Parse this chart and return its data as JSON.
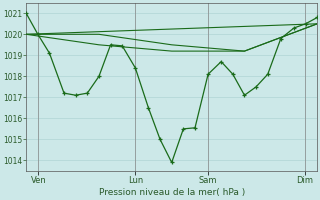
{
  "background_color": "#cce8e8",
  "grid_color": "#b0d4d4",
  "line_color": "#1a6b1a",
  "xlabel_text": "Pression niveau de la mer( hPa )",
  "xlabels": [
    "Ven",
    "Lun",
    "Sam",
    "Dim"
  ],
  "ylim": [
    1013.5,
    1021.5
  ],
  "yticks": [
    1014,
    1015,
    1016,
    1017,
    1018,
    1019,
    1020,
    1021
  ],
  "xtick_positions": [
    0.0,
    0.333,
    0.667,
    1.0
  ],
  "xtick_labels_positions": [
    0.042,
    0.375,
    0.625,
    0.958
  ],
  "main_x": [
    0.0,
    0.04,
    0.08,
    0.13,
    0.17,
    0.21,
    0.25,
    0.29,
    0.33,
    0.375,
    0.42,
    0.46,
    0.5,
    0.54,
    0.58,
    0.625,
    0.67,
    0.71,
    0.75,
    0.79,
    0.83,
    0.875,
    0.92,
    0.96,
    1.0
  ],
  "main_y": [
    1021.0,
    1020.0,
    1019.1,
    1017.2,
    1017.1,
    1017.2,
    1018.0,
    1019.5,
    1019.45,
    1018.4,
    1016.5,
    1015.0,
    1013.9,
    1015.5,
    1015.55,
    1018.1,
    1018.7,
    1018.1,
    1017.1,
    1017.5,
    1018.1,
    1019.8,
    1020.3,
    1020.5,
    1020.8
  ],
  "line2_x": [
    0.0,
    0.25,
    0.5,
    0.75,
    1.0
  ],
  "line2_y": [
    1020.0,
    1020.0,
    1019.5,
    1019.2,
    1020.5
  ],
  "line3_x": [
    0.0,
    1.0
  ],
  "line3_y": [
    1020.0,
    1020.5
  ],
  "line4_x": [
    0.0,
    0.25,
    0.5,
    0.75,
    1.0
  ],
  "line4_y": [
    1020.0,
    1019.5,
    1019.2,
    1019.2,
    1020.5
  ]
}
